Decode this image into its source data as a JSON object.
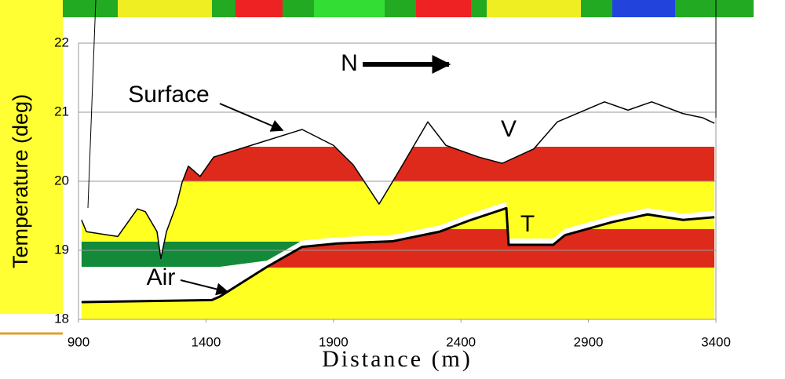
{
  "chart_data": {
    "type": "line",
    "xlabel": "Distance (m)",
    "ylabel": "Temperature (deg)",
    "xlim": [
      900,
      3400
    ],
    "ylim": [
      18,
      22
    ],
    "xticks": [
      900,
      1400,
      1900,
      2400,
      2900,
      3400
    ],
    "yticks": [
      18,
      19,
      20,
      21,
      22
    ],
    "grid": true,
    "annotations": [
      "N",
      "V",
      "T"
    ],
    "series": [
      {
        "name": "Surface",
        "color": "#000000",
        "x": [
          912,
          931,
          1054,
          1131,
          1162,
          1208,
          1223,
          1245,
          1285,
          1306,
          1331,
          1377,
          1430,
          1577,
          1777,
          1900,
          1977,
          2079,
          2162,
          2270,
          2341,
          2470,
          2562,
          2686,
          2778,
          2963,
          3055,
          3148,
          3271,
          3348,
          3394
        ],
        "values": [
          19.44,
          19.27,
          19.2,
          19.6,
          19.56,
          19.27,
          18.88,
          19.27,
          19.67,
          19.98,
          20.22,
          20.07,
          20.35,
          20.52,
          20.75,
          20.52,
          20.24,
          19.67,
          20.18,
          20.86,
          20.52,
          20.35,
          20.26,
          20.47,
          20.86,
          21.15,
          21.03,
          21.15,
          20.98,
          20.92,
          20.84
        ]
      },
      {
        "name": "Air",
        "color": "#000000",
        "x": [
          912,
          1423,
          1454,
          1639,
          1777,
          1916,
          2131,
          2316,
          2439,
          2578,
          2587,
          2762,
          2808,
          2994,
          3132,
          3271,
          3394
        ],
        "values": [
          18.25,
          18.28,
          18.33,
          18.76,
          19.05,
          19.1,
          19.13,
          19.27,
          19.44,
          19.61,
          19.08,
          19.08,
          19.22,
          19.41,
          19.52,
          19.44,
          19.48
        ]
      }
    ]
  }
}
